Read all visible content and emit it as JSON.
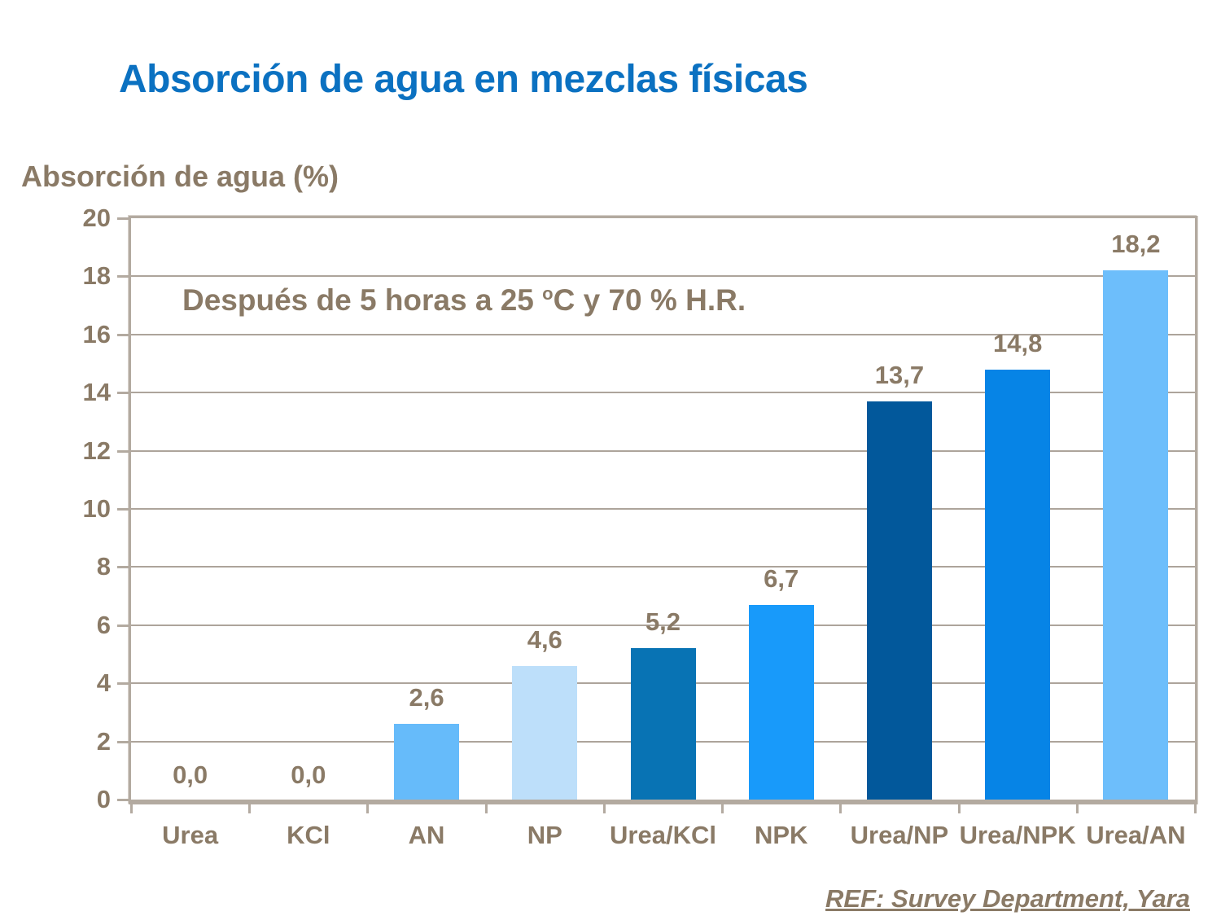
{
  "slide": {
    "footer": "REF: Survey Department,  Yara"
  },
  "chart_data": {
    "type": "bar",
    "title": "Absorción de agua en mezclas físicas",
    "ylabel": "Absorción de agua (%)",
    "xlabel": "",
    "annotation": {
      "prefix": "Después de 5 horas a 25 ",
      "superscript": "o",
      "suffix": "C y 70 % H.R."
    },
    "categories": [
      "Urea",
      "KCl",
      "AN",
      "NP",
      "Urea/KCl",
      "NPK",
      "Urea/NP",
      "Urea/NPK",
      "Urea/AN"
    ],
    "values": [
      0.0,
      0.0,
      2.6,
      4.6,
      5.2,
      6.7,
      13.7,
      14.8,
      18.2
    ],
    "value_labels": [
      "0,0",
      "0,0",
      "2,6",
      "4,6",
      "5,2",
      "6,7",
      "13,7",
      "14,8",
      "18,2"
    ],
    "bar_colors": [
      null,
      null,
      "#66BBFA",
      "#BDDFFA",
      "#0873B4",
      "#189AFA",
      "#02589B",
      "#0684E6",
      "#6DBEFB"
    ],
    "ylim": [
      0,
      20
    ],
    "ytick_step": 2,
    "grid": true,
    "legend": false,
    "colors": {
      "title_text": "#0B71C1",
      "axis_text": "#8A7A66",
      "gridline": "#ADA49B",
      "frame": "#B3AAA0"
    }
  }
}
